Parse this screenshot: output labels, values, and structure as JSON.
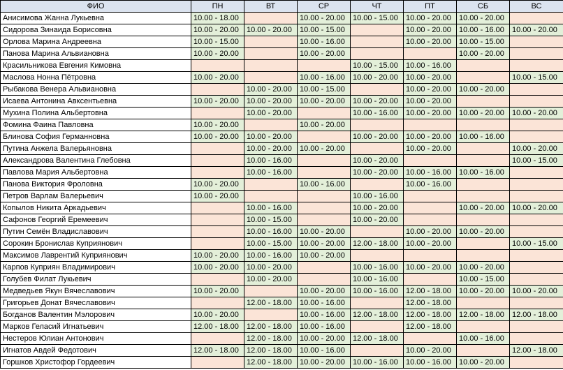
{
  "header": {
    "name_col": "ФИО",
    "days": [
      "ПН",
      "ВТ",
      "СР",
      "ЧТ",
      "ПТ",
      "СБ",
      "ВС"
    ]
  },
  "colors": {
    "header_bg": "#dbe3ef",
    "working_bg": "#e3efd9",
    "off_bg": "#fbe4d7",
    "border": "#000000"
  },
  "rows": [
    {
      "name": "Анисимова Жанна Лукьевна",
      "slots": [
        "10.00 - 18.00",
        "",
        "10.00 - 20.00",
        "10.00 - 15.00",
        "10.00 - 20.00",
        "10.00 - 20.00",
        ""
      ]
    },
    {
      "name": "Сидорова Зинаида Борисовна",
      "slots": [
        "10.00 - 20.00",
        "10.00 - 20.00",
        "10.00 - 15.00",
        "",
        "10.00 - 20.00",
        "10.00 - 16.00",
        "10.00 - 20.00"
      ]
    },
    {
      "name": "Орлова Марина Андреевна",
      "slots": [
        "10.00 - 15.00",
        "",
        "10.00 - 16.00",
        "",
        "10.00 - 20.00",
        "10.00 - 15.00",
        ""
      ]
    },
    {
      "name": "Панова Марина Альвиановна",
      "slots": [
        "10.00 - 20.00",
        "",
        "10.00 - 20.00",
        "",
        "",
        "10.00 - 20.00",
        ""
      ]
    },
    {
      "name": "Красильникова Евгения Кимовна",
      "slots": [
        "",
        "",
        "",
        "10.00 - 15.00",
        "10.00 - 16.00",
        "",
        ""
      ]
    },
    {
      "name": "Маслова Нонна Пётровна",
      "slots": [
        "10.00 - 20.00",
        "",
        "10.00 - 16.00",
        "10.00 - 20.00",
        "10.00 - 20.00",
        "",
        "10.00 - 15.00"
      ]
    },
    {
      "name": "Рыбакова Венера Альвиановна",
      "slots": [
        "",
        "10.00 - 20.00",
        "10.00 - 15.00",
        "",
        "10.00 - 20.00",
        "10.00 - 20.00",
        ""
      ]
    },
    {
      "name": "Исаева Антонина Авксентьевна",
      "slots": [
        "10.00 - 20.00",
        "10.00 - 20.00",
        "10.00 - 20.00",
        "10.00 - 20.00",
        "10.00 - 20.00",
        "",
        ""
      ]
    },
    {
      "name": "Мухина Полина Альбертовна",
      "slots": [
        "",
        "10.00 - 20.00",
        "",
        "10.00 - 16.00",
        "10.00 - 20.00",
        "10.00 - 20.00",
        "10.00 - 20.00"
      ]
    },
    {
      "name": "Фомина Фаина Павловна",
      "slots": [
        "10.00 - 20.00",
        "",
        "10.00 - 20.00",
        "",
        "",
        "",
        ""
      ]
    },
    {
      "name": "Блинова София Германновна",
      "slots": [
        "10.00 - 20.00",
        "10.00 - 20.00",
        "",
        "10.00 - 20.00",
        "10.00 - 20.00",
        "10.00 - 16.00",
        ""
      ]
    },
    {
      "name": "Путина Анжела Валерьяновна",
      "slots": [
        "",
        "10.00 - 20.00",
        "10.00 - 20.00",
        "",
        "10.00 - 20.00",
        "",
        "10.00 - 20.00"
      ]
    },
    {
      "name": "Александрова Валентина Глебовна",
      "slots": [
        "",
        "10.00 - 16.00",
        "",
        "10.00 - 20.00",
        "",
        "",
        "10.00 - 15.00"
      ]
    },
    {
      "name": "Павлова Мария Альбертовна",
      "slots": [
        "",
        "10.00 - 16.00",
        "",
        "10.00 - 20.00",
        "10.00 - 16.00",
        "10.00 - 16.00",
        ""
      ]
    },
    {
      "name": "Панова Виктория Фроловна",
      "slots": [
        "10.00 - 20.00",
        "",
        "10.00 - 16.00",
        "",
        "10.00 - 16.00",
        "",
        ""
      ]
    },
    {
      "name": "Петров Варлам Валерьевич",
      "slots": [
        "10.00 - 20.00",
        "",
        "",
        "10.00 - 16.00",
        "",
        "",
        ""
      ]
    },
    {
      "name": "Копылов Никита Аркадьевич",
      "slots": [
        "",
        "10.00 - 16.00",
        "",
        "10.00 - 20.00",
        "",
        "10.00 - 20.00",
        "10.00 - 20.00"
      ]
    },
    {
      "name": "Сафонов Георгий Еремеевич",
      "slots": [
        "",
        "10.00 - 15.00",
        "",
        "10.00 - 20.00",
        "",
        "",
        ""
      ]
    },
    {
      "name": "Путин Семён Владиславович",
      "slots": [
        "",
        "10.00 - 16.00",
        "10.00 - 20.00",
        "",
        "10.00 - 20.00",
        "10.00 - 20.00",
        ""
      ]
    },
    {
      "name": "Сорокин Бронислав Куприянович",
      "slots": [
        "",
        "10.00 - 15.00",
        "10.00 - 20.00",
        "12.00 - 18.00",
        "10.00 - 20.00",
        "",
        "10.00 - 15.00"
      ]
    },
    {
      "name": "Максимов Лаврентий Куприянович",
      "slots": [
        "10.00 - 20.00",
        "10.00 - 16.00",
        "10.00 - 20.00",
        "",
        "",
        "",
        ""
      ]
    },
    {
      "name": "Карпов Куприян Владимирович",
      "slots": [
        "10.00 - 20.00",
        "10.00 - 20.00",
        "",
        "10.00 - 16.00",
        "10.00 - 20.00",
        "10.00 - 20.00",
        ""
      ]
    },
    {
      "name": "Голубев Филат Лукьевич",
      "slots": [
        "",
        "10.00 - 20.00",
        "",
        "10.00 - 16.00",
        "",
        "10.00 - 15.00",
        ""
      ]
    },
    {
      "name": "Медведьев Якун Вячеславович",
      "slots": [
        "10.00 - 20.00",
        "",
        "10.00 - 20.00",
        "10.00 - 16.00",
        "12.00 - 18.00",
        "10.00 - 20.00",
        "10.00 - 20.00"
      ]
    },
    {
      "name": "Григорьев Донат Вячеславович",
      "slots": [
        "",
        "12.00 - 18.00",
        "10.00 - 16.00",
        "",
        "12.00 - 18.00",
        "",
        ""
      ]
    },
    {
      "name": "Богданов Валентин Мэлорович",
      "slots": [
        "10.00 - 20.00",
        "",
        "10.00 - 16.00",
        "12.00 - 18.00",
        "12.00 - 18.00",
        "12.00 - 18.00",
        "12.00 - 18.00"
      ]
    },
    {
      "name": "Марков Геласий Игнатьевич",
      "slots": [
        "12.00 - 18.00",
        "12.00 - 18.00",
        "10.00 - 16.00",
        "",
        "12.00 - 18.00",
        "",
        ""
      ]
    },
    {
      "name": "Нестеров Юлиан Антонович",
      "slots": [
        "",
        "12.00 - 18.00",
        "10.00 - 20.00",
        "12.00 - 18.00",
        "",
        "10.00 - 16.00",
        ""
      ]
    },
    {
      "name": "Игнатов Авдей Федотович",
      "slots": [
        "12.00 - 18.00",
        "12.00 - 18.00",
        "10.00 - 16.00",
        "",
        "10.00 - 20.00",
        "",
        "12.00 - 18.00"
      ]
    },
    {
      "name": "Горшков Христофор Гордеевич",
      "slots": [
        "",
        "12.00 - 18.00",
        "10.00 - 20.00",
        "10.00 - 16.00",
        "10.00 - 16.00",
        "10.00 - 20.00",
        ""
      ]
    }
  ]
}
